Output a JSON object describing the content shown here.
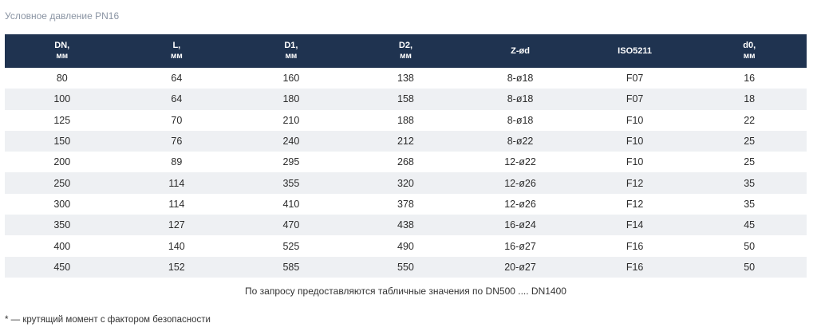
{
  "caption": "Условное давление PN16",
  "table": {
    "headers": [
      {
        "label": "DN,",
        "unit": "мм"
      },
      {
        "label": "L,",
        "unit": "мм"
      },
      {
        "label": "D1,",
        "unit": "мм"
      },
      {
        "label": "D2,",
        "unit": "мм"
      },
      {
        "label": "Z-ød",
        "unit": ""
      },
      {
        "label": "ISO5211",
        "unit": ""
      },
      {
        "label": "d0,",
        "unit": "мм"
      }
    ],
    "rows": [
      [
        "80",
        "64",
        "160",
        "138",
        "8-ø18",
        "F07",
        "16"
      ],
      [
        "100",
        "64",
        "180",
        "158",
        "8-ø18",
        "F07",
        "18"
      ],
      [
        "125",
        "70",
        "210",
        "188",
        "8-ø18",
        "F10",
        "22"
      ],
      [
        "150",
        "76",
        "240",
        "212",
        "8-ø22",
        "F10",
        "25"
      ],
      [
        "200",
        "89",
        "295",
        "268",
        "12-ø22",
        "F10",
        "25"
      ],
      [
        "250",
        "114",
        "355",
        "320",
        "12-ø26",
        "F12",
        "35"
      ],
      [
        "300",
        "114",
        "410",
        "378",
        "12-ø26",
        "F12",
        "35"
      ],
      [
        "350",
        "127",
        "470",
        "438",
        "16-ø24",
        "F14",
        "45"
      ],
      [
        "400",
        "140",
        "525",
        "490",
        "16-ø27",
        "F16",
        "50"
      ],
      [
        "450",
        "152",
        "585",
        "550",
        "20-ø27",
        "F16",
        "50"
      ]
    ]
  },
  "note": "По запросу предоставляются табличные значения по DN500 .... DN1400",
  "footnote": "* — крутящий момент с фактором безопасности"
}
